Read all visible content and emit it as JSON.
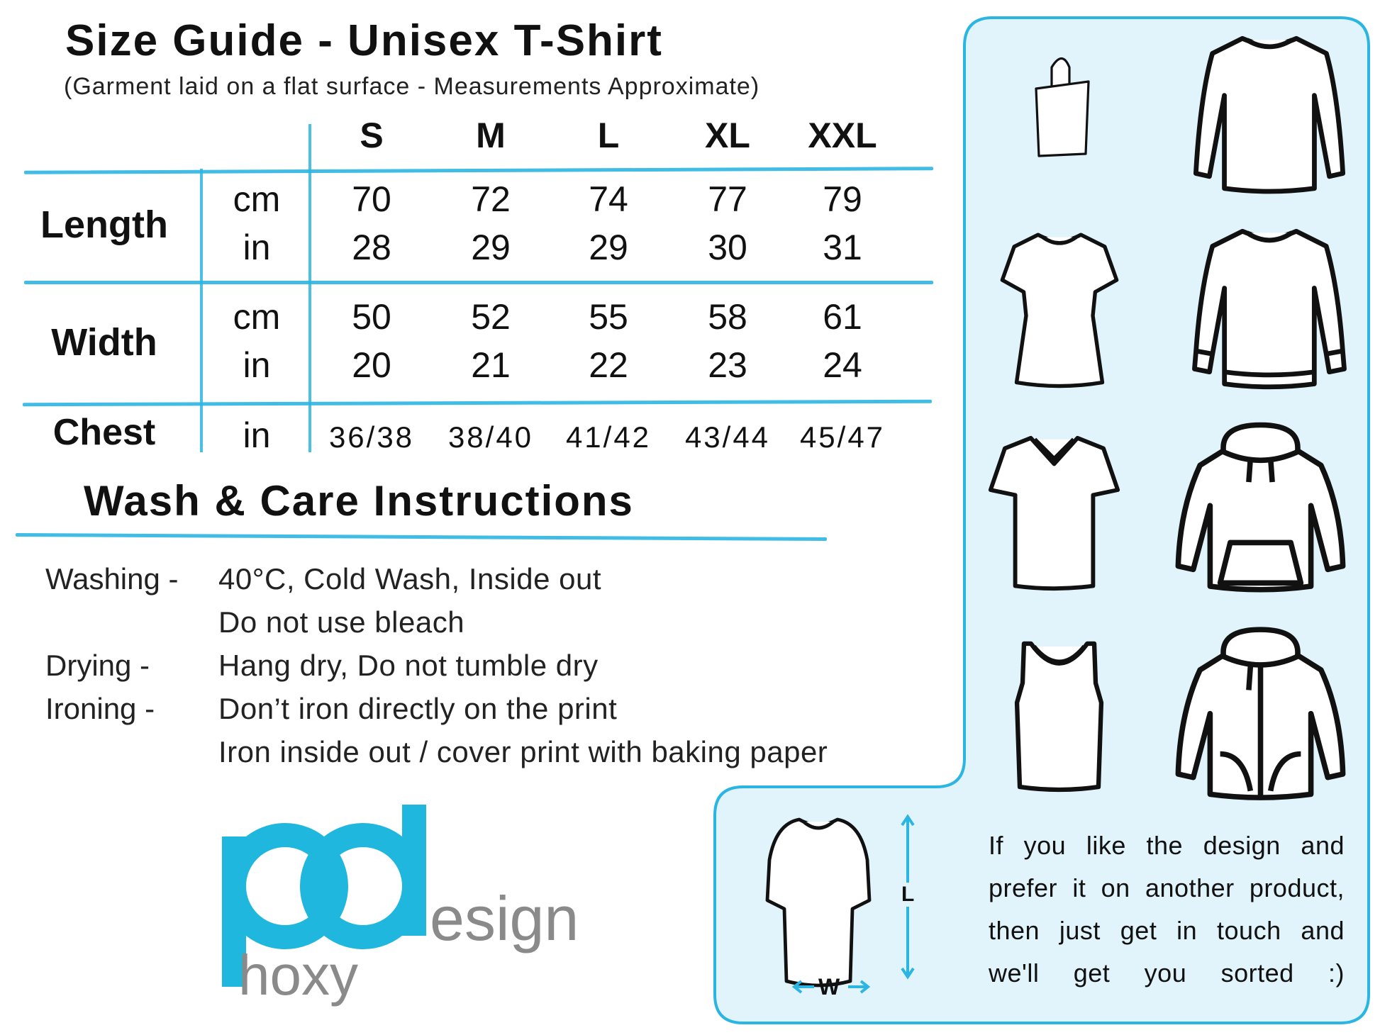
{
  "title": "Size Guide - Unisex T-Shirt",
  "subtitle": "(Garment laid on a flat surface - Measurements Approximate)",
  "sizes": [
    "S",
    "M",
    "L",
    "XL",
    "XXL"
  ],
  "rows": [
    {
      "label": "Length",
      "units": [
        {
          "unit": "cm",
          "values": [
            "70",
            "72",
            "74",
            "77",
            "79"
          ]
        },
        {
          "unit": "in",
          "values": [
            "28",
            "29",
            "29",
            "30",
            "31"
          ]
        }
      ]
    },
    {
      "label": "Width",
      "units": [
        {
          "unit": "cm",
          "values": [
            "50",
            "52",
            "55",
            "58",
            "61"
          ]
        },
        {
          "unit": "in",
          "values": [
            "20",
            "21",
            "22",
            "23",
            "24"
          ]
        }
      ]
    },
    {
      "label": "Chest",
      "units": [
        {
          "unit": "in",
          "values": [
            "36/38",
            "38/40",
            "41/42",
            "43/44",
            "45/47"
          ]
        }
      ]
    }
  ],
  "care": {
    "title": "Wash & Care Instructions",
    "items": [
      {
        "label": "Washing -",
        "lines": [
          "40°C, Cold Wash, Inside out",
          "Do not use bleach"
        ]
      },
      {
        "label": "Drying -",
        "lines": [
          "Hang dry, Do not tumble dry"
        ]
      },
      {
        "label": "Ironing -",
        "lines": [
          "Don’t iron directly on the print",
          "Iron inside out / cover print with baking paper"
        ]
      }
    ]
  },
  "logo": {
    "pd": "pd",
    "esign": "esign",
    "hoxy": "hoxy"
  },
  "diagram": {
    "length_label": "L",
    "width_label": "W"
  },
  "note": [
    "If you like the design and",
    "prefer it on another product,",
    "then just get in touch and",
    "we'll get you sorted :)"
  ],
  "icons": [
    "tote-bag-icon",
    "long-sleeve-shirt-icon",
    "fitted-t-shirt-icon",
    "sweatshirt-icon",
    "v-neck-t-shirt-icon",
    "hoodie-icon",
    "tank-top-icon",
    "zip-hoodie-icon"
  ],
  "colors": {
    "accent": "#2bb5e2",
    "panel": "#e1f3fb",
    "logo_cyan": "#1fb7dd",
    "logo_gray": "#8a8a8a"
  }
}
